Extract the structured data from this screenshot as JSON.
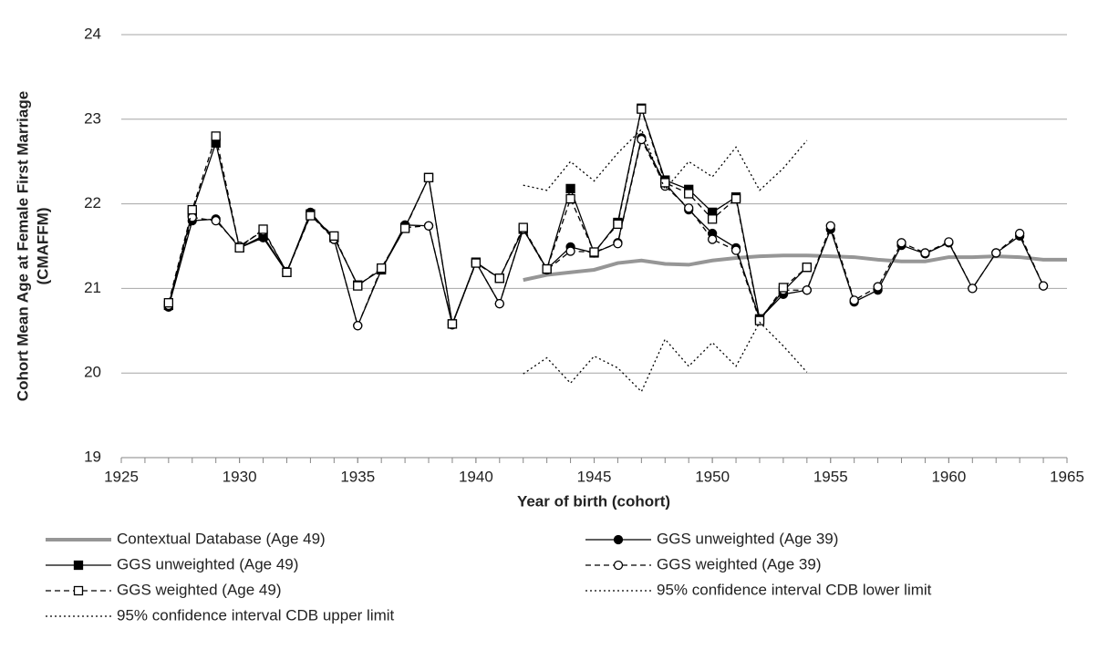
{
  "chart_data": {
    "type": "line",
    "x_label": "Year of birth (cohort)",
    "y_label": [
      "Cohort Mean Age at Female First Marriage",
      "(CMAFFM)"
    ],
    "x": [
      1927,
      1928,
      1929,
      1930,
      1931,
      1932,
      1933,
      1934,
      1935,
      1936,
      1937,
      1938,
      1939,
      1940,
      1941,
      1942,
      1943,
      1944,
      1945,
      1946,
      1947,
      1948,
      1949,
      1950,
      1951,
      1952,
      1953,
      1954,
      1955,
      1956,
      1957,
      1958,
      1959,
      1960,
      1961,
      1962,
      1963,
      1964,
      1965
    ],
    "xlim": [
      1925,
      1965
    ],
    "xticks": [
      1925,
      1930,
      1935,
      1940,
      1945,
      1950,
      1955,
      1960,
      1965
    ],
    "x_minor_step": 1,
    "ylim": [
      19,
      24
    ],
    "yticks": [
      19,
      20,
      21,
      22,
      23,
      24
    ],
    "grid": true,
    "series": [
      {
        "name": "Contextual Database (Age 49)",
        "color": "#969696",
        "width": 4,
        "dash": "solid",
        "marker": "none",
        "values": [
          null,
          null,
          null,
          null,
          null,
          null,
          null,
          null,
          null,
          null,
          null,
          null,
          null,
          null,
          null,
          21.1,
          21.16,
          21.19,
          21.22,
          21.3,
          21.33,
          21.29,
          21.28,
          21.33,
          21.36,
          21.38,
          21.39,
          21.39,
          21.38,
          21.37,
          21.34,
          21.32,
          21.32,
          21.37,
          21.37,
          21.38,
          21.37,
          21.34,
          21.34
        ]
      },
      {
        "name": "GGS unweighted (Age 39)",
        "color": "#000000",
        "width": 1.3,
        "dash": "solid",
        "marker": "circle-filled",
        "values": [
          20.78,
          21.8,
          21.82,
          21.48,
          21.6,
          21.19,
          21.9,
          21.58,
          20.56,
          21.22,
          21.75,
          21.74,
          20.57,
          21.31,
          20.82,
          21.7,
          21.23,
          21.49,
          21.42,
          21.54,
          22.78,
          22.24,
          21.93,
          21.65,
          21.48,
          20.64,
          20.93,
          20.98,
          21.7,
          20.84,
          20.98,
          21.51,
          21.41,
          21.54,
          21.0,
          21.42,
          21.62,
          21.03,
          null
        ]
      },
      {
        "name": "GGS unweighted (Age 49)",
        "color": "#000000",
        "width": 1.3,
        "dash": "solid",
        "marker": "square-filled",
        "values": [
          20.8,
          21.9,
          22.72,
          21.48,
          21.62,
          21.19,
          21.88,
          21.6,
          21.04,
          21.22,
          21.72,
          22.31,
          20.58,
          21.31,
          21.12,
          21.7,
          21.23,
          22.18,
          21.42,
          21.78,
          23.13,
          22.28,
          22.17,
          21.9,
          22.08,
          20.64,
          20.97,
          21.25,
          null,
          null,
          null,
          null,
          null,
          null,
          null,
          null,
          null,
          null,
          null
        ]
      },
      {
        "name": "GGS weighted (Age 39)",
        "color": "#000000",
        "width": 1.3,
        "dash": "dashed",
        "marker": "circle-open",
        "values": [
          20.8,
          21.84,
          21.8,
          21.5,
          21.68,
          21.2,
          21.87,
          21.58,
          20.56,
          21.24,
          21.72,
          21.74,
          20.58,
          21.31,
          20.82,
          21.7,
          21.22,
          21.44,
          21.43,
          21.53,
          22.76,
          22.21,
          21.95,
          21.58,
          21.45,
          20.62,
          20.98,
          20.98,
          21.74,
          20.86,
          21.02,
          21.54,
          21.42,
          21.55,
          21.0,
          21.42,
          21.65,
          21.03,
          null
        ]
      },
      {
        "name": "GGS weighted (Age 49)",
        "color": "#000000",
        "width": 1.3,
        "dash": "dashed",
        "marker": "square-open",
        "values": [
          20.83,
          21.93,
          22.8,
          21.48,
          21.7,
          21.19,
          21.86,
          21.62,
          21.03,
          21.24,
          21.71,
          22.31,
          20.58,
          21.3,
          21.12,
          21.72,
          21.23,
          22.06,
          21.43,
          21.76,
          23.12,
          22.25,
          22.12,
          21.82,
          22.06,
          20.62,
          21.01,
          21.25,
          null,
          null,
          null,
          null,
          null,
          null,
          null,
          null,
          null,
          null,
          null
        ]
      },
      {
        "name": "95% confidence interval CDB lower limit",
        "color": "#000000",
        "width": 1.3,
        "dash": "dotted",
        "marker": "none",
        "values": [
          null,
          null,
          null,
          null,
          null,
          null,
          null,
          null,
          null,
          null,
          null,
          null,
          null,
          null,
          null,
          19.99,
          20.18,
          19.88,
          20.2,
          20.06,
          19.78,
          20.4,
          20.08,
          20.36,
          20.08,
          20.6,
          20.32,
          20.01,
          null,
          null,
          null,
          null,
          null,
          null,
          null,
          null,
          null,
          null,
          null
        ]
      },
      {
        "name": "95% confidence interval CDB upper limit",
        "color": "#000000",
        "width": 1.3,
        "dash": "dotted",
        "marker": "none",
        "values": [
          null,
          null,
          null,
          null,
          null,
          null,
          null,
          null,
          null,
          null,
          null,
          null,
          null,
          null,
          null,
          22.22,
          22.16,
          22.5,
          22.27,
          22.6,
          22.88,
          22.17,
          22.5,
          22.32,
          22.67,
          22.16,
          22.42,
          22.75,
          null,
          null,
          null,
          null,
          null,
          null,
          null,
          null,
          null,
          null,
          null
        ]
      }
    ],
    "legend_order": [
      0,
      1,
      2,
      3,
      4,
      5,
      6
    ]
  }
}
